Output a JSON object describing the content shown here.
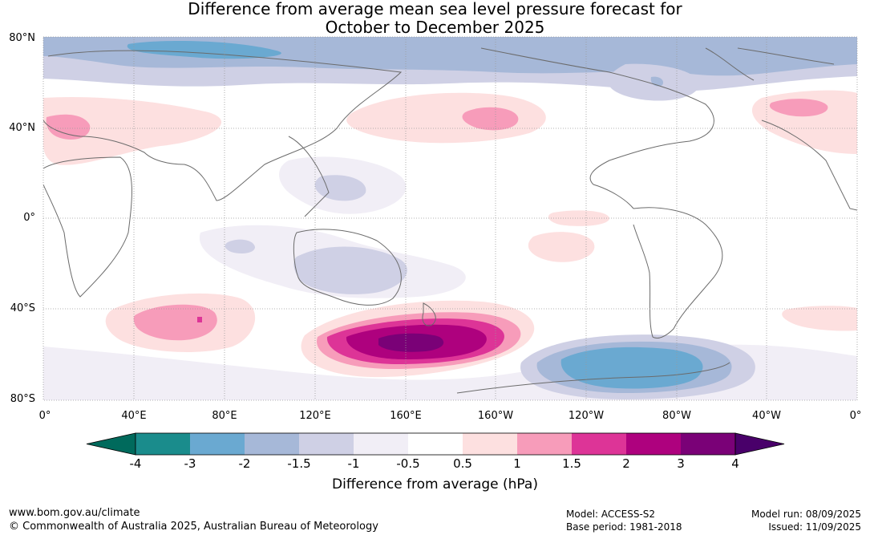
{
  "title": {
    "line1": "Difference from average mean sea level pressure forecast for",
    "line2": "October to December 2025"
  },
  "axes": {
    "y_labels": [
      "80°N",
      "40°N",
      "0°",
      "40°S",
      "80°S"
    ],
    "x_labels": [
      "0°",
      "40°E",
      "80°E",
      "120°E",
      "160°E",
      "160°W",
      "120°W",
      "80°W",
      "40°W",
      "0°"
    ]
  },
  "colorbar": {
    "ticks": [
      "-4",
      "-3",
      "-2",
      "-1.5",
      "-1",
      "-0.5",
      "0.5",
      "1",
      "1.5",
      "2",
      "3",
      "4"
    ],
    "colors": [
      "#1a8c8c",
      "#6aa9d1",
      "#a6b8d8",
      "#cfd0e5",
      "#f1eef6",
      "#ffffff",
      "#fde0e0",
      "#f79cba",
      "#dd3497",
      "#ae017e",
      "#7a0177"
    ],
    "under_color": "#006a5c",
    "over_color": "#49006a",
    "label": "Difference from average (hPa)"
  },
  "footer": {
    "url": "www.bom.gov.au/climate",
    "copyright": "© Commonwealth of Australia 2025, Australian Bureau of Meteorology",
    "model": "Model: ACCESS-S2",
    "base_period": "Base period: 1981-2018",
    "model_run": "Model run: 08/09/2025",
    "issued": "Issued: 11/09/2025"
  }
}
